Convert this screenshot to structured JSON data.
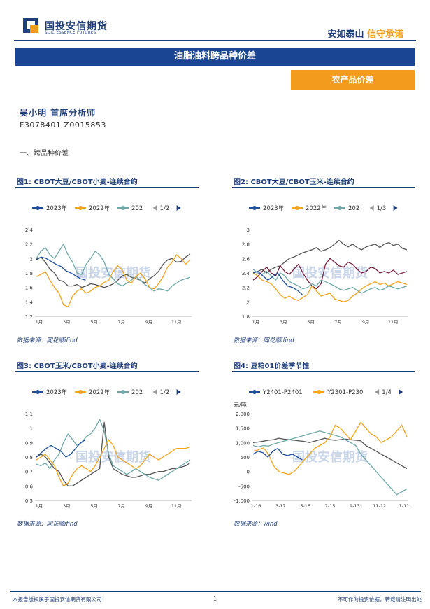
{
  "header": {
    "logo_cn": "国投安信期货",
    "logo_en": "SDIC ESSENCE FUTURES",
    "slogan_a": "安如泰山",
    "slogan_b": "信守承诺"
  },
  "report_title": "油脂油料跨品种价差",
  "category": "农产品价差",
  "author": "吴小明 首席分析师",
  "license": "F3078401  Z0015853",
  "section": "一、跨品种价差",
  "watermark": "国投安信期货",
  "colors": {
    "navy": "#1f3e7a",
    "orange": "#f29b1d",
    "s2023": "#1f4e9c",
    "s2022": "#f4a31b",
    "s202x": "#6fa8a8",
    "maroon": "#7a1f3e",
    "grey": "#555555"
  },
  "figures": [
    {
      "title": "图1: CBOT大豆/CBOT小麦-连续合约",
      "legend": [
        "2023年",
        "2022年",
        "202"
      ],
      "pager": "1/2",
      "source": "数据来源：同花顺ifind",
      "chart_data": {
        "type": "line",
        "y_ticks": [
          "2.4",
          "2.2",
          "2",
          "1.8",
          "1.6",
          "1.4",
          "1.2"
        ],
        "ylim": [
          1.2,
          2.4
        ],
        "x_ticks": [
          "1月",
          "3月",
          "5月",
          "7月",
          "9月",
          "11月"
        ],
        "series": [
          {
            "name": "2023年",
            "color": "#1f4e9c",
            "values": [
              1.99,
              2.02,
              2.0,
              1.96,
              1.92,
              1.89,
              1.83,
              1.8,
              1.76,
              1.72,
              1.7
            ]
          },
          {
            "name": "2022年",
            "color": "#f4a31b",
            "values": [
              1.75,
              1.78,
              1.82,
              1.7,
              1.6,
              1.52,
              1.36,
              1.33,
              1.48,
              1.55,
              1.58,
              1.52,
              1.55,
              1.6,
              1.62,
              1.67,
              1.7,
              1.82,
              1.9,
              1.84,
              1.7,
              1.66,
              1.75,
              1.8,
              1.72,
              1.6,
              1.58,
              1.65,
              1.75,
              1.88,
              1.95,
              2.05,
              2.0,
              1.92,
              1.98
            ]
          },
          {
            "name": "202",
            "color": "#6fa8a8",
            "values": [
              2.0,
              2.1,
              2.15,
              2.05,
              2.0,
              2.1,
              2.2,
              2.05,
              1.95,
              1.8,
              1.78,
              1.92,
              2.0,
              2.1,
              2.05,
              1.95,
              1.78,
              1.72,
              1.65,
              1.62,
              1.66,
              1.7,
              1.75,
              1.7,
              1.64,
              1.6,
              1.55,
              1.58,
              1.57,
              1.55,
              1.62,
              1.66,
              1.7,
              1.72,
              1.74
            ]
          },
          {
            "name": "",
            "color": "#555555",
            "values": [
              1.98,
              2.02,
              1.95,
              1.85,
              1.8,
              1.7,
              1.68,
              1.62,
              1.62,
              1.64,
              1.6,
              1.62,
              1.65,
              1.64,
              1.62,
              1.6,
              1.62,
              1.65,
              1.7,
              1.76,
              1.78,
              1.74,
              1.72,
              1.7,
              1.66,
              1.72,
              1.76,
              1.82,
              1.92,
              1.98,
              2.0,
              1.95,
              1.96,
              2.02,
              2.06
            ]
          }
        ]
      }
    },
    {
      "title": "图2: CBOT大豆/CBOT玉米-连续合约",
      "legend": [
        "2023年",
        "2022年",
        "202"
      ],
      "pager": "1/3",
      "source": "数据来源：同花顺ifind",
      "chart_data": {
        "type": "line",
        "y_ticks": [
          "3",
          "2.8",
          "2.6",
          "2.4",
          "2.2",
          "2",
          "1.8"
        ],
        "ylim": [
          1.8,
          3.0
        ],
        "x_ticks": [
          "1月",
          "3月",
          "5月",
          "7月",
          "9月",
          "11月"
        ],
        "series": [
          {
            "name": "2023年",
            "color": "#1f4e9c",
            "values": [
              2.4,
              2.42,
              2.36,
              2.3,
              2.35,
              2.4,
              2.3,
              2.22,
              2.2,
              2.16,
              2.1
            ]
          },
          {
            "name": "2022年",
            "color": "#f4a31b",
            "values": [
              2.4,
              2.36,
              2.3,
              2.28,
              2.25,
              2.18,
              2.1,
              2.05,
              2.08,
              2.04,
              2.02,
              2.06,
              2.1,
              2.22,
              2.15,
              2.08,
              2.1,
              2.12,
              2.04,
              2.02,
              2.0,
              2.02,
              2.08,
              2.12,
              2.18,
              2.22,
              2.25,
              2.28,
              2.24,
              2.26,
              2.22,
              2.25,
              2.28,
              2.26,
              2.24
            ]
          },
          {
            "name": "202",
            "color": "#6fa8a8",
            "values": [
              2.45,
              2.4,
              2.38,
              2.42,
              2.36,
              2.3,
              2.4,
              2.36,
              2.28,
              2.25,
              2.22,
              2.18,
              2.2,
              2.25,
              2.22,
              2.3,
              2.28,
              2.25,
              2.22,
              2.18,
              2.16,
              2.18,
              2.2,
              2.16,
              2.12,
              2.15,
              2.18,
              2.2,
              2.16,
              2.18,
              2.22,
              2.2,
              2.18,
              2.2,
              2.22
            ]
          },
          {
            "name": "",
            "color": "#7a1f3e",
            "values": [
              2.3,
              2.35,
              2.42,
              2.48,
              2.4,
              2.36,
              2.5,
              2.42,
              2.38,
              2.45,
              2.52,
              2.4,
              2.3,
              2.22,
              2.18,
              2.25,
              2.52,
              2.6,
              2.55,
              2.5,
              2.48,
              2.55,
              2.52,
              2.45,
              2.4,
              2.42,
              2.48,
              2.46,
              2.4,
              2.42,
              2.4,
              2.44,
              2.38,
              2.4,
              2.42
            ]
          },
          {
            "name": "",
            "color": "#555555",
            "values": [
              2.4,
              2.42,
              2.45,
              2.4,
              2.45,
              2.48,
              2.5,
              2.55,
              2.6,
              2.62,
              2.65,
              2.68,
              2.7,
              2.72,
              2.75,
              2.7,
              2.72,
              2.75,
              2.8,
              2.85,
              2.8,
              2.76,
              2.8,
              2.75,
              2.72,
              2.76,
              2.78,
              2.8,
              2.75,
              2.8,
              2.82,
              2.78,
              2.8,
              2.74,
              2.72
            ]
          }
        ]
      }
    },
    {
      "title": "图3: CBOT玉米/CBOT小麦-连续合约",
      "legend": [
        "2023年",
        "2022年",
        "202"
      ],
      "pager": "1/2",
      "source": "数据来源：同花顺ifind",
      "chart_data": {
        "type": "line",
        "y_ticks": [
          "1.1",
          "1",
          "0.9",
          "0.8",
          "0.7",
          "0.6",
          "0.5"
        ],
        "ylim": [
          0.5,
          1.1
        ],
        "x_ticks": [
          "1月",
          "3月",
          "5月",
          "7月",
          "9月",
          "11月"
        ],
        "series": [
          {
            "name": "2023年",
            "color": "#1f4e9c",
            "values": [
              0.8,
              0.83,
              0.86,
              0.88,
              0.86,
              0.84,
              0.8,
              0.82,
              0.86,
              0.9,
              0.92
            ]
          },
          {
            "name": "2022年",
            "color": "#f4a31b",
            "values": [
              0.78,
              0.8,
              0.82,
              0.78,
              0.74,
              0.66,
              0.6,
              0.62,
              0.68,
              0.72,
              0.74,
              0.72,
              0.7,
              0.74,
              0.8,
              0.86,
              0.92,
              0.88,
              0.8,
              0.78,
              0.76,
              0.74,
              0.72,
              0.74,
              0.78,
              0.82,
              0.8,
              0.78,
              0.8,
              0.82,
              0.84,
              0.86,
              0.86,
              0.86,
              0.87
            ]
          },
          {
            "name": "202",
            "color": "#6fa8a8",
            "values": [
              0.75,
              0.74,
              0.76,
              0.72,
              0.78,
              0.82,
              0.9,
              0.96,
              0.92,
              0.88,
              0.9,
              0.94,
              0.96,
              1.0,
              1.06,
              0.98,
              0.82,
              0.74,
              0.72,
              0.7,
              0.68,
              0.7,
              0.72,
              0.7,
              0.68,
              0.66,
              0.65,
              0.64,
              0.66,
              0.68,
              0.7,
              0.72,
              0.74,
              0.76,
              0.78
            ]
          },
          {
            "name": "",
            "color": "#555555",
            "values": [
              0.8,
              0.82,
              0.8,
              0.76,
              0.72,
              0.7,
              0.64,
              0.6,
              0.6,
              0.62,
              0.64,
              0.66,
              0.68,
              0.7,
              0.72,
              1.04,
              0.8,
              0.72,
              0.7,
              0.68,
              0.67,
              0.66,
              0.66,
              0.67,
              0.68,
              0.68,
              0.69,
              0.7,
              0.7,
              0.71,
              0.72,
              0.72,
              0.73,
              0.74,
              0.76
            ]
          }
        ]
      }
    },
    {
      "title": "图4: 豆粕01价差季节性",
      "legend": [
        "Y2401-P2401",
        "Y2301-P230"
      ],
      "pager": "1/4",
      "unit": "元/吨",
      "source": "数据来源：wind",
      "chart_data": {
        "type": "line",
        "y_ticks": [
          "2,000",
          "1,500",
          "1,000",
          "500",
          "0",
          "-500",
          "-1,000"
        ],
        "ylim": [
          -1000,
          2000
        ],
        "x_ticks": [
          "1-16",
          "3-17",
          "5-16",
          "7-15",
          "9-13",
          "11-12",
          "1-11"
        ],
        "series": [
          {
            "name": "Y2401-P2401",
            "color": "#1f4e9c",
            "values": [
              600,
              700,
              650,
              500,
              700,
              800,
              600,
              550,
              600,
              500,
              400
            ]
          },
          {
            "name": "Y2301-P230",
            "color": "#f4a31b",
            "values": [
              700,
              750,
              820,
              600,
              200,
              0,
              -50,
              -100,
              0,
              200,
              400,
              600,
              800,
              900,
              1000,
              1200,
              1600,
              1500,
              1300,
              1100,
              1400,
              1700,
              1500,
              1300,
              1200,
              1000,
              1100,
              1200,
              1400,
              1600,
              1200
            ]
          },
          {
            "name": "",
            "color": "#6fa8a8",
            "values": [
              900,
              850,
              900,
              880,
              950,
              1000,
              1050,
              1100,
              1150,
              1200,
              1250,
              1300,
              1350,
              1400,
              1350,
              1300,
              1250,
              1200,
              1100,
              1000,
              900,
              600,
              400,
              200,
              0,
              -200,
              -400,
              -600,
              -800,
              -700,
              -600
            ]
          },
          {
            "name": "",
            "color": "#555555",
            "values": [
              1000,
              1020,
              1050,
              1080,
              1100,
              1150,
              1120,
              1100,
              1080,
              1060,
              1040,
              1000,
              1050,
              1100,
              1150,
              1100,
              1080,
              1100,
              1120,
              1100,
              1080,
              1060,
              900,
              800,
              700,
              600,
              500,
              400,
              300,
              200,
              100
            ]
          }
        ]
      }
    }
  ],
  "footer": {
    "left": "本报告版权属于国投安信期货有限公司",
    "page": "1",
    "right": "不可作为投资依据，转载请注明出处"
  }
}
